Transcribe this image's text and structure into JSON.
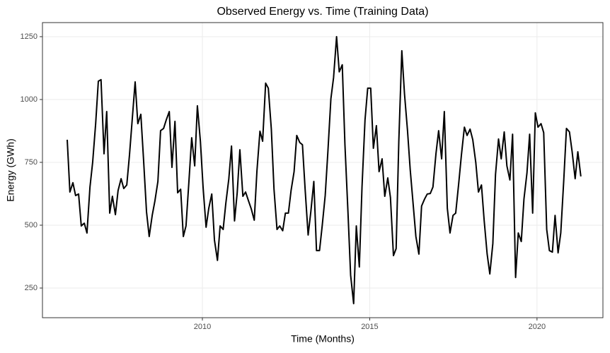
{
  "chart_data": {
    "type": "line",
    "title": "Observed Energy vs. Time (Training Data)",
    "x_label": "Time (Months)",
    "y_label": "Energy (GWh)",
    "x": [
      2005.96,
      2006.04,
      2006.13,
      2006.21,
      2006.3,
      2006.38,
      2006.47,
      2006.55,
      2006.64,
      2006.72,
      2006.81,
      2006.89,
      2006.97,
      2007.06,
      2007.14,
      2007.23,
      2007.31,
      2007.4,
      2007.48,
      2007.57,
      2007.65,
      2007.74,
      2007.82,
      2007.91,
      2007.99,
      2008.07,
      2008.16,
      2008.24,
      2008.33,
      2008.41,
      2008.5,
      2008.58,
      2008.67,
      2008.75,
      2008.84,
      2008.92,
      2009.01,
      2009.09,
      2009.18,
      2009.26,
      2009.35,
      2009.43,
      2009.51,
      2009.6,
      2009.68,
      2009.77,
      2009.85,
      2009.94,
      2010.02,
      2010.11,
      2010.19,
      2010.28,
      2010.36,
      2010.45,
      2010.53,
      2010.62,
      2010.7,
      2010.79,
      2010.87,
      2010.96,
      2011.04,
      2011.12,
      2011.21,
      2011.29,
      2011.38,
      2011.46,
      2011.55,
      2011.63,
      2011.72,
      2011.8,
      2011.89,
      2011.97,
      2012.06,
      2012.14,
      2012.23,
      2012.31,
      2012.4,
      2012.48,
      2012.57,
      2012.65,
      2012.74,
      2012.82,
      2012.91,
      2012.99,
      2013.07,
      2013.16,
      2013.24,
      2013.33,
      2013.41,
      2013.5,
      2013.58,
      2013.67,
      2013.75,
      2013.84,
      2013.92,
      2014.01,
      2014.09,
      2014.18,
      2014.26,
      2014.35,
      2014.43,
      2014.52,
      2014.6,
      2014.69,
      2014.77,
      2014.86,
      2014.94,
      2015.03,
      2015.11,
      2015.2,
      2015.28,
      2015.37,
      2015.45,
      2015.54,
      2015.62,
      2015.71,
      2015.79,
      2015.87,
      2015.96,
      2016.04,
      2016.13,
      2016.21,
      2016.3,
      2016.38,
      2016.47,
      2016.55,
      2016.64,
      2016.72,
      2016.81,
      2016.89,
      2016.98,
      2017.06,
      2017.15,
      2017.23,
      2017.32,
      2017.4,
      2017.49,
      2017.57,
      2017.66,
      2017.74,
      2017.83,
      2017.91,
      2018.0,
      2018.08,
      2018.17,
      2018.25,
      2018.34,
      2018.42,
      2018.51,
      2018.59,
      2018.68,
      2018.76,
      2018.85,
      2018.93,
      2019.02,
      2019.1,
      2019.19,
      2019.27,
      2019.36,
      2019.44,
      2019.53,
      2019.61,
      2019.7,
      2019.78,
      2019.87,
      2019.95,
      2020.03,
      2020.12,
      2020.2,
      2020.29,
      2020.37,
      2020.46,
      2020.54,
      2020.63,
      2020.71,
      2020.8,
      2020.88,
      2020.97,
      2021.05,
      2021.14,
      2021.22,
      2021.31
    ],
    "series": [
      {
        "name": "Energy",
        "color": "#000000",
        "values": [
          840,
          632,
          669,
          618,
          624,
          497,
          508,
          469,
          652,
          750,
          904,
          1073,
          1079,
          784,
          952,
          548,
          615,
          542,
          638,
          685,
          646,
          660,
          778,
          933,
          1070,
          904,
          941,
          764,
          553,
          455,
          539,
          596,
          674,
          876,
          885,
          919,
          952,
          730,
          913,
          629,
          643,
          455,
          497,
          680,
          848,
          736,
          975,
          834,
          652,
          492,
          567,
          624,
          441,
          360,
          497,
          483,
          587,
          685,
          815,
          517,
          629,
          800,
          615,
          632,
          596,
          565,
          520,
          716,
          874,
          834,
          1065,
          1045,
          882,
          643,
          483,
          497,
          478,
          548,
          548,
          638,
          713,
          857,
          829,
          820,
          643,
          461,
          553,
          674,
          399,
          399,
          497,
          618,
          792,
          1003,
          1087,
          1250,
          1110,
          1138,
          820,
          553,
          301,
          188,
          497,
          334,
          652,
          919,
          1045,
          1045,
          806,
          896,
          713,
          764,
          615,
          688,
          610,
          379,
          407,
          834,
          1194,
          1022,
          876,
          722,
          581,
          455,
          385,
          576,
          604,
          624,
          626,
          652,
          784,
          876,
          764,
          952,
          567,
          469,
          539,
          548,
          666,
          778,
          890,
          857,
          882,
          840,
          750,
          632,
          660,
          520,
          385,
          306,
          427,
          702,
          843,
          764,
          871,
          736,
          680,
          862,
          292,
          469,
          435,
          604,
          708,
          862,
          548,
          947,
          890,
          904,
          868,
          483,
          399,
          393,
          539,
          390,
          469,
          680,
          885,
          871,
          792,
          685,
          792,
          694
        ]
      }
    ],
    "xlim": [
      2005.22,
      2021.97
    ],
    "xticks": [
      2010,
      2015,
      2020
    ],
    "ylim": [
      132,
      1306
    ],
    "yticks": [
      250,
      500,
      750,
      1000,
      1250
    ],
    "grid": true
  }
}
